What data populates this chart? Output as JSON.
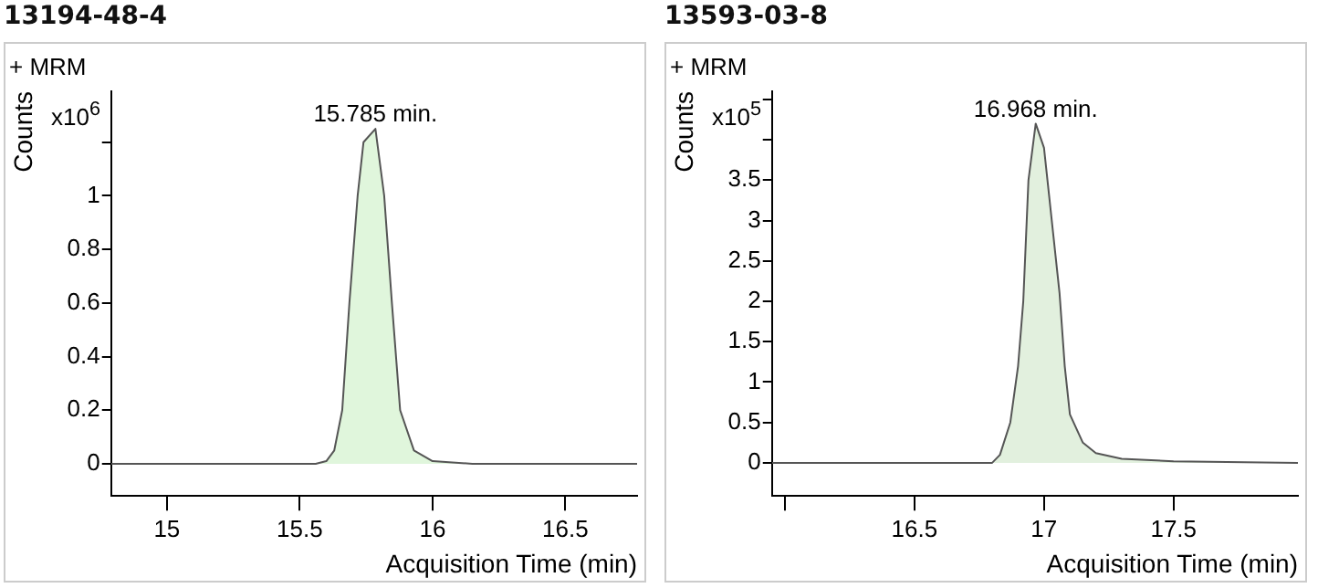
{
  "chart_data": [
    {
      "type": "area",
      "title": "13194-48-4",
      "subtitle": "+ MRM",
      "xlabel": "Acquisition Time (min)",
      "ylabel": "Counts",
      "color": "#e0f6dc",
      "grid": false,
      "legend": false,
      "annotations": [
        "x10$^{6}$",
        {
          "text": "15.785 min.",
          "x": 15.785,
          "y": 1.25
        }
      ],
      "x": [
        14.79,
        15.56,
        15.6,
        15.63,
        15.66,
        15.687,
        15.718,
        15.74,
        15.785,
        15.818,
        15.847,
        15.878,
        15.93,
        16.0,
        16.15,
        16.77
      ],
      "values": [
        0,
        0,
        0.01,
        0.05,
        0.2,
        0.6,
        1.0,
        1.2,
        1.25,
        1.0,
        0.6,
        0.2,
        0.05,
        0.01,
        0,
        0
      ],
      "xlim": [
        14.79,
        16.77
      ],
      "xticks": [
        15,
        15.5,
        16,
        16.5
      ],
      "ylim": [
        -0.12,
        1.39
      ],
      "yticks": [
        0,
        0.2,
        0.4,
        0.6,
        0.8,
        1,
        {
          "value": 1.2,
          "label": null
        }
      ]
    },
    {
      "type": "area",
      "title": "13593-03-8",
      "subtitle": "+ MRM",
      "xlabel": "Acquisition Time (min)",
      "ylabel": "Counts",
      "color": "#e2f0de",
      "grid": false,
      "legend": false,
      "annotations": [
        "x10$^{5}$",
        {
          "text": "16.968 min.",
          "x": 16.968,
          "y": 4.2
        }
      ],
      "x": [
        15.95,
        16.8,
        16.83,
        16.87,
        16.9,
        16.92,
        16.94,
        16.968,
        17.0,
        17.03,
        17.06,
        17.08,
        17.1,
        17.15,
        17.2,
        17.3,
        17.5,
        17.98
      ],
      "values": [
        0,
        0,
        0.1,
        0.5,
        1.2,
        2.0,
        3.5,
        4.2,
        3.9,
        3.0,
        2.1,
        1.2,
        0.6,
        0.25,
        0.12,
        0.05,
        0.02,
        0
      ],
      "xlim": [
        15.95,
        17.98
      ],
      "xticks": [
        {
          "value": 16,
          "label": null
        },
        16.5,
        17,
        17.5
      ],
      "ylim": [
        -0.41,
        4.6
      ],
      "yticks": [
        0,
        0.5,
        1,
        1.5,
        2,
        2.5,
        3,
        3.5,
        {
          "value": 4,
          "label": null
        },
        {
          "value": 4.5,
          "label": null
        }
      ]
    }
  ]
}
